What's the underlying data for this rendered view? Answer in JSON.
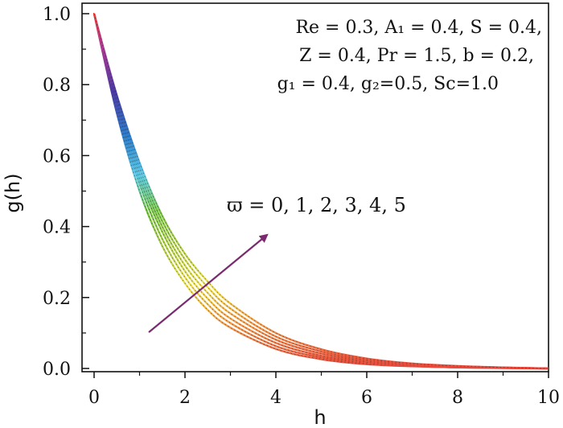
{
  "chart_data": {
    "type": "line",
    "title": "",
    "xlabel": "h",
    "ylabel": "g(h)",
    "xlim": [
      0,
      10
    ],
    "ylim": [
      0,
      1
    ],
    "x_ticks": [
      "0",
      "2",
      "4",
      "6",
      "8",
      "10"
    ],
    "y_ticks": [
      "0.0",
      "0.2",
      "0.4",
      "0.6",
      "0.8",
      "1.0"
    ],
    "parameters": [
      "Re = 0.3, A₁ = 0.4, S = 0.4,",
      "Z = 0.4, Pr = 1.5, b = 0.2,",
      "g₁ = 0.4, g₂=0.5,  Sc=1.0"
    ],
    "arrow_label": "ϖ = 0, 1, 2, 3, 4, 5",
    "x": [
      0,
      0.5,
      1,
      1.5,
      2,
      2.5,
      3,
      4,
      5,
      6,
      7,
      8,
      9,
      10
    ],
    "series": [
      {
        "values": [
          1.0,
          0.72,
          0.5,
          0.345,
          0.24,
          0.165,
          0.115,
          0.055,
          0.026,
          0.012,
          0.006,
          0.003,
          0.001,
          0.0
        ]
      },
      {
        "values": [
          1.0,
          0.73,
          0.52,
          0.365,
          0.257,
          0.181,
          0.128,
          0.063,
          0.031,
          0.015,
          0.007,
          0.003,
          0.0015,
          0.0
        ]
      },
      {
        "values": [
          1.0,
          0.74,
          0.535,
          0.385,
          0.274,
          0.197,
          0.141,
          0.072,
          0.036,
          0.018,
          0.008,
          0.004,
          0.002,
          0.0
        ]
      },
      {
        "values": [
          1.0,
          0.75,
          0.55,
          0.4,
          0.29,
          0.213,
          0.155,
          0.081,
          0.042,
          0.021,
          0.01,
          0.005,
          0.002,
          0.0
        ]
      },
      {
        "values": [
          1.0,
          0.76,
          0.565,
          0.415,
          0.307,
          0.229,
          0.169,
          0.09,
          0.048,
          0.024,
          0.012,
          0.006,
          0.0025,
          0.0
        ]
      },
      {
        "values": [
          1.0,
          0.77,
          0.58,
          0.43,
          0.323,
          0.245,
          0.183,
          0.1,
          0.054,
          0.028,
          0.014,
          0.007,
          0.003,
          0.0
        ]
      }
    ],
    "grid": false,
    "legend": "none"
  }
}
